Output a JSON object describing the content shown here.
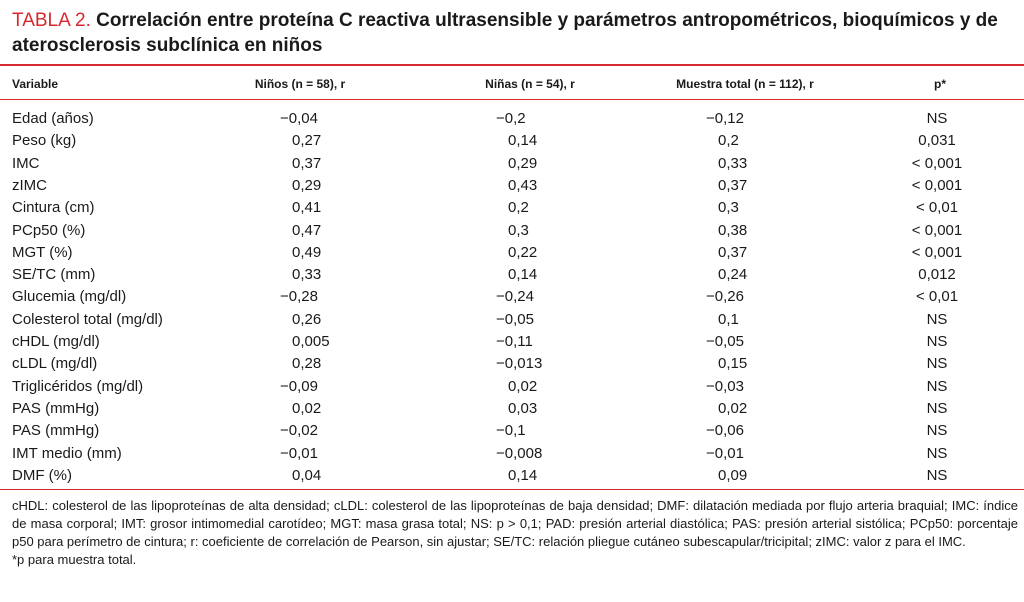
{
  "title": {
    "label": "TABLA 2.",
    "text": "Correlación entre proteína C reactiva ultrasensible y parámetros antropométricos, bioquímicos y de aterosclerosis subclínica en niños"
  },
  "table": {
    "header": [
      "Variable",
      "Niños (n = 58), r",
      "Niñas (n = 54), r",
      "Muestra total (n = 112), r",
      "p*"
    ],
    "rows": [
      [
        "Edad (años)",
        "−0,04",
        "−0,2",
        "−0,12",
        "NS"
      ],
      [
        "Peso (kg)",
        "0,27",
        "0,14",
        "0,2",
        "0,031"
      ],
      [
        "IMC",
        "0,37",
        "0,29",
        "0,33",
        "< 0,001"
      ],
      [
        "zIMC",
        "0,29",
        "0,43",
        "0,37",
        "< 0,001"
      ],
      [
        "Cintura (cm)",
        "0,41",
        "0,2",
        "0,3",
        "< 0,01"
      ],
      [
        "PCp50 (%)",
        "0,47",
        "0,3",
        "0,38",
        "< 0,001"
      ],
      [
        "MGT (%)",
        "0,49",
        "0,22",
        "0,37",
        "< 0,001"
      ],
      [
        "SE/TC (mm)",
        "0,33",
        "0,14",
        "0,24",
        "0,012"
      ],
      [
        "Glucemia (mg/dl)",
        "−0,28",
        "−0,24",
        "−0,26",
        "< 0,01"
      ],
      [
        "Colesterol total (mg/dl)",
        "0,26",
        "−0,05",
        "0,1",
        "NS"
      ],
      [
        "cHDL (mg/dl)",
        "0,005",
        "−0,11",
        "−0,05",
        "NS"
      ],
      [
        "cLDL (mg/dl)",
        "0,28",
        "−0,013",
        "0,15",
        "NS"
      ],
      [
        "Triglicéridos (mg/dl)",
        "−0,09",
        "0,02",
        "−0,03",
        "NS"
      ],
      [
        "PAS (mmHg)",
        "0,02",
        "0,03",
        "0,02",
        "NS"
      ],
      [
        "PAS (mmHg)",
        "−0,02",
        "−0,1",
        "−0,06",
        "NS"
      ],
      [
        "IMT medio (mm)",
        "−0,01",
        "−0,008",
        "−0,01",
        "NS"
      ],
      [
        "DMF (%)",
        "0,04",
        "0,14",
        "0,09",
        "NS"
      ]
    ]
  },
  "footnote": {
    "abbreviations": "cHDL: colesterol de las lipoproteínas de alta densidad; cLDL: colesterol de las lipoproteínas de baja densidad; DMF: dilatación mediada por flujo arteria braquial; IMC: índice de masa corporal; IMT: grosor intimomedial carotídeo; MGT: masa grasa total; NS: p > 0,1; PAD: presión arterial diastólica; PAS: presión arterial sistólica; PCp50: porcentaje p50 para perímetro de cintura; r: coeficiente de correlación de Pearson, sin ajustar; SE/TC: relación pliegue cutáneo subescapular/tricipital; zIMC: valor z para el IMC.",
    "note": "*p para muestra total."
  }
}
